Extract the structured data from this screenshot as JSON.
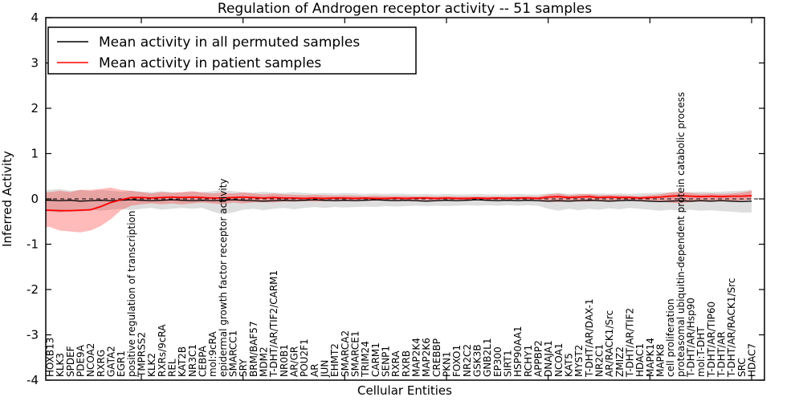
{
  "chart_data": {
    "type": "line",
    "title": "Regulation of Androgen receptor activity -- 51 samples",
    "xlabel": "Cellular Entities",
    "ylabel": "Inferred Activity",
    "ylim": [
      -4,
      4
    ],
    "yticks": [
      4,
      3,
      2,
      1,
      0,
      -1,
      -2,
      -3,
      -4
    ],
    "grid": false,
    "zero_line_style": "dashed",
    "legend_position": "upper-left",
    "categories": [
      "HOXB13",
      "KLK3",
      "SPDEF",
      "PDE9A",
      "NCOA2",
      "RXRG",
      "GATA2",
      "EGR1",
      "positive regulation of transcription",
      "TMPRSS2",
      "KLK2",
      "RXRs/9cRA",
      "REL",
      "KAT2B",
      "NR3C1",
      "CEBPA",
      "mol:9cRA",
      "epidermal growth factor receptor activity",
      "SMARCC1",
      "SRY",
      "BRM/BAF57",
      "MDM2",
      "T-DHT/AR/TIF2/CARM1",
      "NR0B1",
      "AR/GR",
      "POU2F1",
      "AR",
      "JUN",
      "EHMT2",
      "SMARCA2",
      "SMARCE1",
      "TRIM24",
      "CARM1",
      "SENP1",
      "RXRA",
      "RXRB",
      "MAP2K4",
      "MAP2K6",
      "CREBBP",
      "PKN1",
      "FOXO1",
      "NR2C2",
      "GSK3B",
      "GNB2L1",
      "EP300",
      "SIRT1",
      "HSP90AA1",
      "RCHY1",
      "APPBP2",
      "DNAJA1",
      "NCOA1",
      "KAT5",
      "MYST2",
      "T-DHT/AR/DAX-1",
      "NR2C1",
      "AR/RACK1/Src",
      "ZMIZ2",
      "T-DHT/AR/TIF2",
      "HDAC1",
      "MAPK14",
      "MAPK8",
      "cell proliferation",
      "proteasomal ubiquitin-dependent protein catabolic process",
      "T-DHT/AR/Hsp90",
      "mol:T-DHT",
      "T-DHT/AR/TIP60",
      "T-DHT/AR",
      "T-DHT/AR/RACK1/Src",
      "SRC",
      "HDAC7"
    ],
    "series": [
      {
        "name": "Mean activity in all permuted samples",
        "color": "#000000",
        "values": [
          -0.03,
          -0.04,
          -0.03,
          -0.05,
          -0.04,
          -0.03,
          -0.04,
          -0.03,
          -0.02,
          -0.03,
          -0.04,
          -0.03,
          -0.02,
          -0.03,
          -0.04,
          -0.03,
          -0.04,
          -0.03,
          -0.02,
          -0.03,
          -0.04,
          -0.05,
          -0.04,
          -0.03,
          -0.04,
          -0.03,
          -0.02,
          -0.03,
          -0.04,
          -0.03,
          -0.04,
          -0.03,
          -0.02,
          -0.03,
          -0.04,
          -0.03,
          -0.04,
          -0.05,
          -0.04,
          -0.03,
          -0.04,
          -0.03,
          -0.02,
          -0.03,
          -0.04,
          -0.03,
          -0.04,
          -0.03,
          -0.04,
          -0.05,
          -0.04,
          -0.05,
          -0.04,
          -0.03,
          -0.04,
          -0.05,
          -0.04,
          -0.03,
          -0.04,
          -0.05,
          -0.06,
          -0.05,
          -0.04,
          -0.05,
          -0.04,
          -0.05,
          -0.04,
          -0.05,
          -0.06,
          -0.05
        ]
      },
      {
        "name": "Mean activity in patient samples",
        "color": "#ff0000",
        "values": [
          -0.25,
          -0.26,
          -0.26,
          -0.25,
          -0.24,
          -0.17,
          -0.08,
          -0.02,
          0.03,
          0.03,
          0.02,
          0.03,
          0.04,
          0.03,
          0.04,
          0.03,
          0.02,
          0.02,
          0.03,
          0.04,
          0.03,
          0.02,
          0.03,
          0.02,
          0.02,
          0.01,
          0.02,
          0.01,
          0.02,
          0.02,
          0.01,
          0.02,
          0.01,
          0.01,
          0.02,
          0.01,
          0.02,
          0.02,
          0.01,
          0.02,
          0.01,
          0.01,
          0.02,
          0.01,
          0.02,
          0.01,
          0.02,
          0.02,
          0.01,
          0.04,
          0.05,
          0.03,
          0.04,
          0.05,
          0.03,
          0.04,
          0.03,
          0.03,
          0.02,
          0.03,
          0.04,
          0.06,
          0.07,
          0.06,
          0.05,
          0.06,
          0.05,
          0.06,
          0.06,
          0.07
        ]
      }
    ],
    "bands": [
      {
        "name": "permuted samples range",
        "color": "#000000",
        "opacity": 0.13,
        "upper": [
          0.2,
          0.22,
          0.18,
          0.2,
          0.17,
          0.2,
          0.18,
          0.16,
          0.18,
          0.16,
          0.15,
          0.17,
          0.15,
          0.14,
          0.16,
          0.15,
          0.17,
          0.2,
          0.17,
          0.15,
          0.14,
          0.16,
          0.14,
          0.13,
          0.15,
          0.13,
          0.12,
          0.13,
          0.12,
          0.13,
          0.12,
          0.11,
          0.12,
          0.11,
          0.12,
          0.11,
          0.1,
          0.11,
          0.1,
          0.11,
          0.1,
          0.1,
          0.11,
          0.1,
          0.1,
          0.1,
          0.11,
          0.1,
          0.1,
          0.12,
          0.13,
          0.11,
          0.12,
          0.11,
          0.12,
          0.11,
          0.12,
          0.11,
          0.12,
          0.13,
          0.14,
          0.15,
          0.16,
          0.15,
          0.16,
          0.15,
          0.16,
          0.17,
          0.18,
          0.2
        ],
        "lower": [
          -0.28,
          -0.3,
          -0.26,
          -0.28,
          -0.24,
          -0.26,
          -0.24,
          -0.22,
          -0.25,
          -0.22,
          -0.2,
          -0.24,
          -0.22,
          -0.2,
          -0.22,
          -0.2,
          -0.28,
          -0.34,
          -0.3,
          -0.24,
          -0.22,
          -0.25,
          -0.22,
          -0.2,
          -0.23,
          -0.2,
          -0.18,
          -0.2,
          -0.18,
          -0.19,
          -0.18,
          -0.17,
          -0.18,
          -0.16,
          -0.17,
          -0.16,
          -0.15,
          -0.16,
          -0.15,
          -0.16,
          -0.15,
          -0.14,
          -0.15,
          -0.14,
          -0.15,
          -0.14,
          -0.15,
          -0.14,
          -0.15,
          -0.22,
          -0.26,
          -0.22,
          -0.25,
          -0.22,
          -0.24,
          -0.21,
          -0.23,
          -0.2,
          -0.22,
          -0.24,
          -0.26,
          -0.24,
          -0.26,
          -0.24,
          -0.26,
          -0.25,
          -0.27,
          -0.28,
          -0.3,
          -0.3
        ]
      },
      {
        "name": "patient samples range",
        "color": "#ff0000",
        "opacity": 0.27,
        "upper": [
          0.15,
          0.18,
          0.15,
          0.2,
          0.2,
          0.22,
          0.25,
          0.2,
          0.18,
          0.15,
          0.12,
          0.15,
          0.13,
          0.15,
          0.17,
          0.14,
          0.12,
          0.14,
          0.12,
          0.14,
          0.12,
          0.1,
          0.12,
          0.1,
          0.09,
          0.08,
          0.09,
          0.08,
          0.07,
          0.08,
          0.07,
          0.06,
          0.07,
          0.06,
          0.06,
          0.06,
          0.05,
          0.06,
          0.05,
          0.06,
          0.05,
          0.05,
          0.05,
          0.05,
          0.05,
          0.05,
          0.05,
          0.06,
          0.05,
          0.1,
          0.12,
          0.08,
          0.1,
          0.11,
          0.08,
          0.09,
          0.08,
          0.07,
          0.06,
          0.08,
          0.1,
          0.14,
          0.16,
          0.13,
          0.11,
          0.12,
          0.11,
          0.12,
          0.14,
          0.18
        ],
        "lower": [
          -0.62,
          -0.7,
          -0.72,
          -0.74,
          -0.7,
          -0.6,
          -0.45,
          -0.25,
          -0.15,
          -0.12,
          -0.1,
          -0.12,
          -0.1,
          -0.12,
          -0.1,
          -0.08,
          -0.1,
          -0.12,
          -0.08,
          -0.1,
          -0.08,
          -0.07,
          -0.08,
          -0.06,
          -0.06,
          -0.05,
          -0.06,
          -0.05,
          -0.04,
          -0.05,
          -0.04,
          -0.04,
          -0.04,
          -0.03,
          -0.04,
          -0.03,
          -0.03,
          -0.03,
          -0.03,
          -0.03,
          -0.02,
          -0.03,
          -0.02,
          -0.03,
          -0.02,
          -0.03,
          -0.02,
          -0.03,
          -0.02,
          -0.06,
          -0.07,
          -0.05,
          -0.06,
          -0.06,
          -0.04,
          -0.05,
          -0.04,
          -0.04,
          -0.03,
          -0.04,
          -0.05,
          -0.08,
          -0.1,
          -0.07,
          -0.06,
          -0.06,
          -0.05,
          -0.05,
          -0.04,
          -0.02
        ]
      }
    ]
  }
}
